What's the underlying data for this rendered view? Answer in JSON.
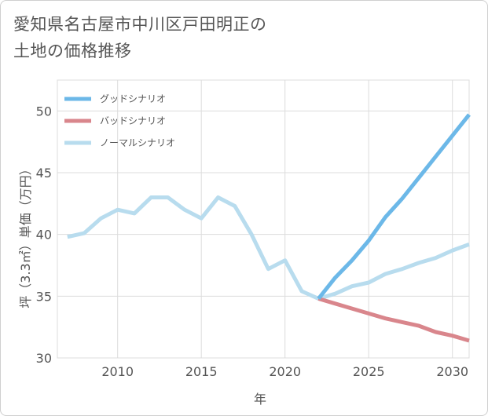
{
  "title": "愛知県名古屋市中川区戸田明正の\n土地の価格推移",
  "chart_data": {
    "type": "line",
    "xlabel": "年",
    "ylabel": "坪（3.3㎡）単価（万円）",
    "xlim": [
      2006.4,
      2031
    ],
    "ylim": [
      30,
      52.5
    ],
    "xticks": [
      2010,
      2015,
      2020,
      2025,
      2030
    ],
    "yticks": [
      30,
      35,
      40,
      45,
      50
    ],
    "grid": true,
    "legend_position": "top-left",
    "series": [
      {
        "name": "グッドシナリオ",
        "color": "#6cb8e8",
        "x": [
          2022,
          2023,
          2024,
          2025,
          2026,
          2027,
          2028,
          2029,
          2030,
          2031
        ],
        "y": [
          34.8,
          36.5,
          37.9,
          39.5,
          41.4,
          42.9,
          44.6,
          46.3,
          48.0,
          49.7
        ]
      },
      {
        "name": "バッドシナリオ",
        "color": "#d9868c",
        "x": [
          2022,
          2023,
          2024,
          2025,
          2026,
          2027,
          2028,
          2029,
          2030,
          2031
        ],
        "y": [
          34.8,
          34.4,
          34.0,
          33.6,
          33.2,
          32.9,
          32.6,
          32.1,
          31.8,
          31.4
        ]
      },
      {
        "name": "ノーマルシナリオ",
        "color": "#b8dcee",
        "x": [
          2007,
          2008,
          2009,
          2010,
          2011,
          2012,
          2013,
          2014,
          2015,
          2016,
          2017,
          2018,
          2019,
          2020,
          2021,
          2022,
          2023,
          2024,
          2025,
          2026,
          2027,
          2028,
          2029,
          2030,
          2031
        ],
        "y": [
          39.8,
          40.1,
          41.3,
          42.0,
          41.7,
          43.0,
          43.0,
          42.0,
          41.3,
          43.0,
          42.3,
          40.0,
          37.2,
          37.9,
          35.4,
          34.8,
          35.2,
          35.8,
          36.1,
          36.8,
          37.2,
          37.7,
          38.1,
          38.7,
          39.2
        ]
      }
    ]
  }
}
